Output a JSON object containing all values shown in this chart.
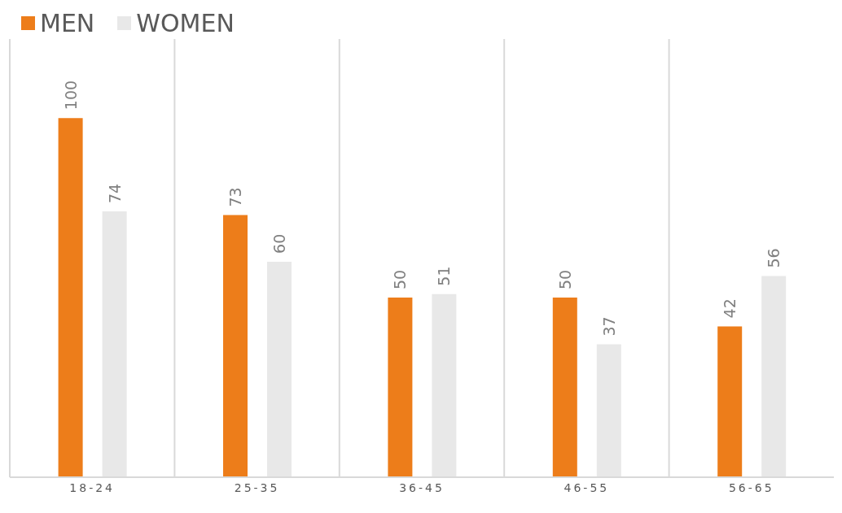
{
  "chart_data": {
    "type": "bar",
    "categories": [
      "18-24",
      "25-35",
      "36-45",
      "46-55",
      "56-65"
    ],
    "series": [
      {
        "name": "MEN",
        "color": "#ed7d1a",
        "values": [
          100,
          73,
          50,
          50,
          42
        ]
      },
      {
        "name": "WOMEN",
        "color": "#e8e8e8",
        "values": [
          74,
          60,
          51,
          37,
          56
        ]
      }
    ],
    "data_labels": true,
    "grid": "x",
    "legend": "top left"
  }
}
